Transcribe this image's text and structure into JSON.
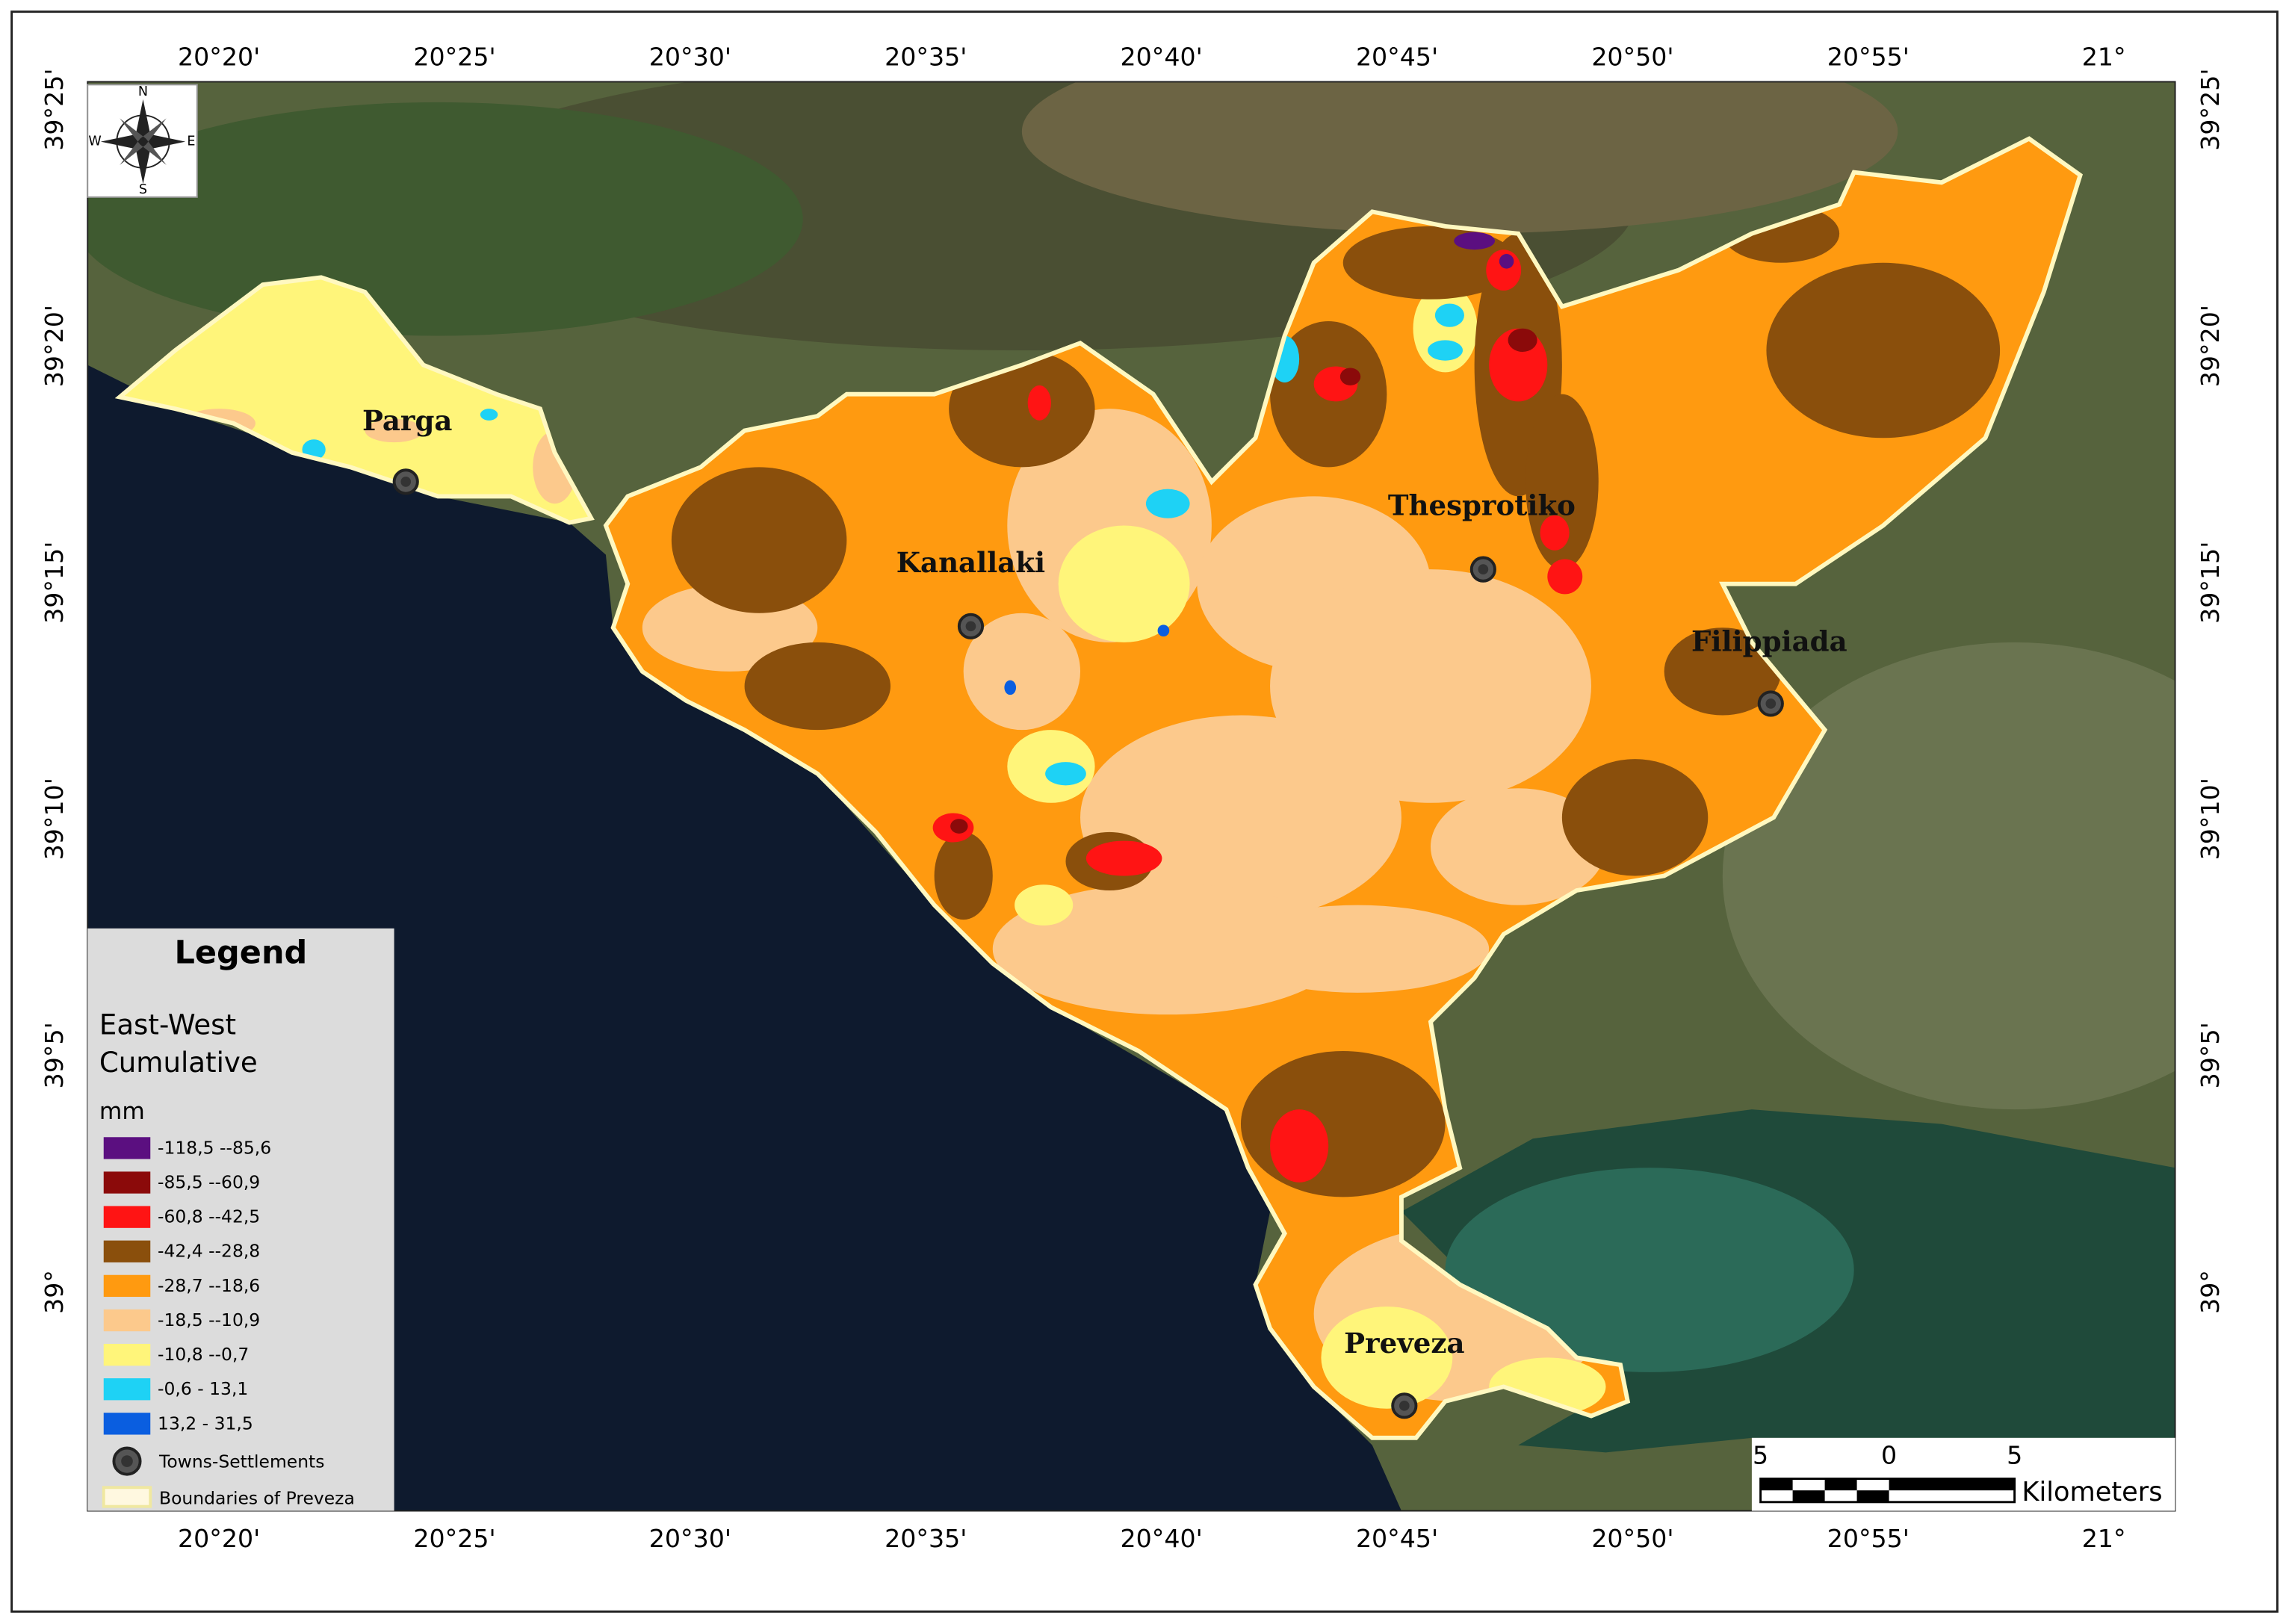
{
  "graticule": {
    "top": [
      "20°20'",
      "20°25'",
      "20°30'",
      "20°35'",
      "20°40'",
      "20°45'",
      "20°50'",
      "20°55'",
      "21°"
    ],
    "bottom": [
      "20°20'",
      "20°25'",
      "20°30'",
      "20°35'",
      "20°40'",
      "20°45'",
      "20°50'",
      "20°55'",
      "21°"
    ],
    "left": [
      "39°25'",
      "39°20'",
      "39°15'",
      "39°10'",
      "39°5'",
      "39°"
    ],
    "right": [
      "39°25'",
      "39°20'",
      "39°15'",
      "39°10'",
      "39°5'",
      "39°"
    ]
  },
  "towns": [
    {
      "name": "Parga"
    },
    {
      "name": "Kanallaki"
    },
    {
      "name": "Thesprotiko"
    },
    {
      "name": "Filippiada"
    },
    {
      "name": "Preveza"
    }
  ],
  "legend": {
    "title": "Legend",
    "layer_lines": [
      "East-West",
      "Cumulative"
    ],
    "unit": "mm",
    "classes": [
      {
        "label": "-118,5 --85,6",
        "color": "#5b0f80"
      },
      {
        "label": "-85,5 --60,9",
        "color": "#8b0a0a"
      },
      {
        "label": "-60,8 --42,5",
        "color": "#ff1414"
      },
      {
        "label": "-42,4 --28,8",
        "color": "#8a4f0c"
      },
      {
        "label": "-28,7 --18,6",
        "color": "#ff9a10"
      },
      {
        "label": "-18,5 --10,9",
        "color": "#fcc98c"
      },
      {
        "label": "-10,8 --0,7",
        "color": "#fff57a"
      },
      {
        "label": "-0,6 - 13,1",
        "color": "#1ed2f5"
      },
      {
        "label": "13,2 - 31,5",
        "color": "#0a5ee0"
      }
    ],
    "towns_label": "Towns-Settlements",
    "boundary_label": "Boundaries of Preveza"
  },
  "compass": {
    "n": "N",
    "e": "E",
    "s": "S",
    "w": "W"
  },
  "scale_bar": {
    "labels": [
      "5",
      "0",
      "5"
    ],
    "unit": "Kilometers"
  }
}
